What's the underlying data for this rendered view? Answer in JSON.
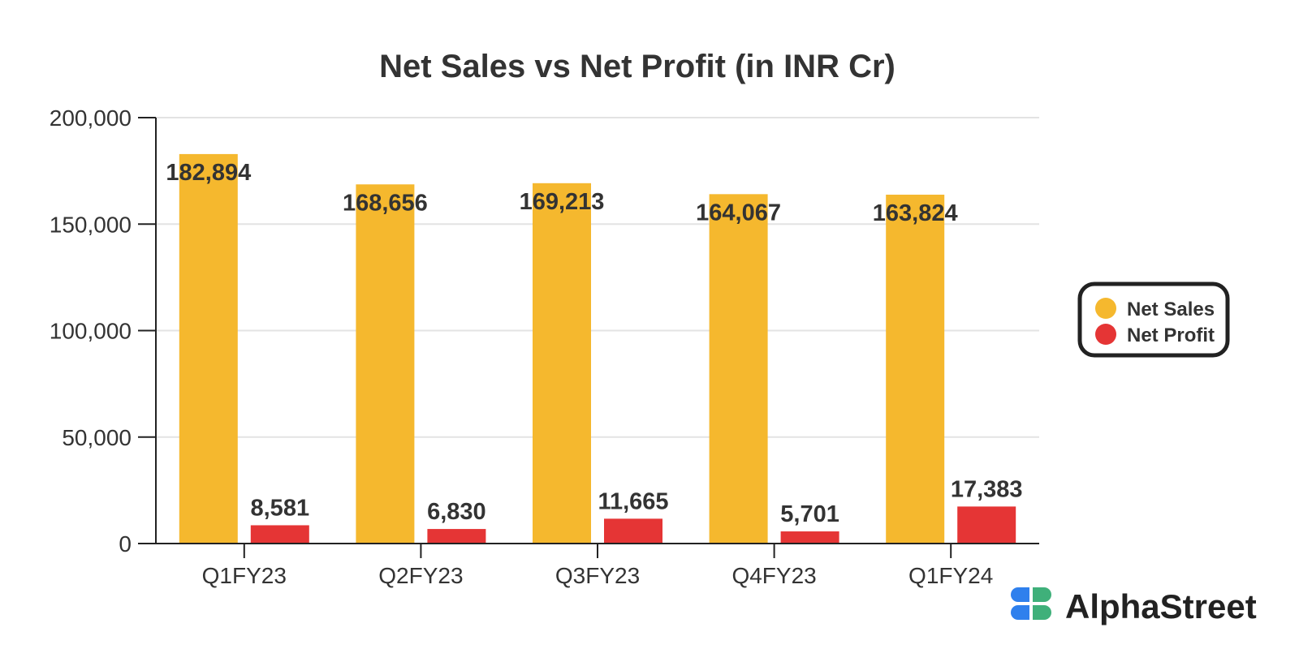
{
  "chart_data": {
    "type": "bar",
    "title": "Net Sales vs Net Profit (in INR Cr)",
    "categories": [
      "Q1FY23",
      "Q2FY23",
      "Q3FY23",
      "Q4FY23",
      "Q1FY24"
    ],
    "series": [
      {
        "name": "Net Sales",
        "color": "#F5B82E",
        "values": [
          182894,
          168656,
          169213,
          164067,
          163824
        ],
        "labels": [
          "182,894",
          "168,656",
          "169,213",
          "164,067",
          "163,824"
        ]
      },
      {
        "name": "Net Profit",
        "color": "#E53535",
        "values": [
          8581,
          6830,
          11665,
          5701,
          17383
        ],
        "labels": [
          "8,581",
          "6,830",
          "11,665",
          "5,701",
          "17,383"
        ]
      }
    ],
    "yticks": [
      0,
      50000,
      100000,
      150000,
      200000
    ],
    "ytick_labels": [
      "0",
      "50,000",
      "100,000",
      "150,000",
      "200,000"
    ],
    "ylim": [
      0,
      200000
    ],
    "grid": true,
    "legend_position": "right"
  },
  "brand": {
    "name": "AlphaStreet",
    "logo_colors": [
      "#2F80ED",
      "#3FB07A"
    ]
  }
}
